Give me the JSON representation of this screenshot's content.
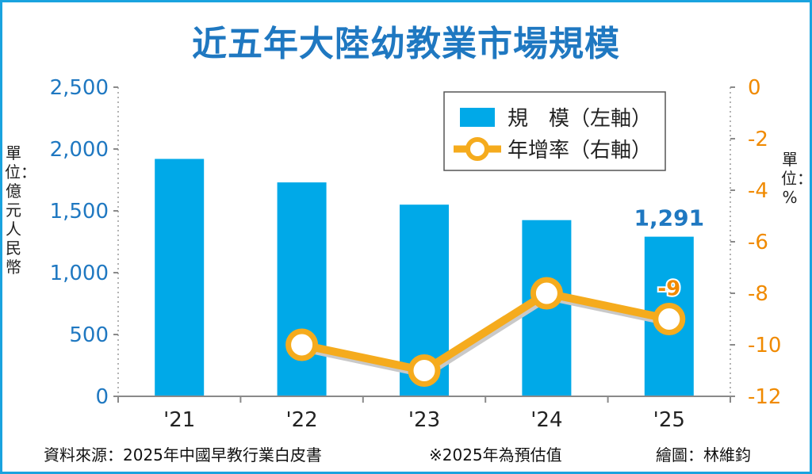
{
  "title": "近五年大陸幼教業市場規模",
  "unit_left": "單位：億元人民幣",
  "unit_right": "單位：%",
  "footer": {
    "source": "資料來源：2025年中國早教行業白皮書",
    "note": "※2025年為預估值",
    "credit": "繪圖：林維鈞"
  },
  "colors": {
    "bar": "#00a9e8",
    "line": "#f5ab1d",
    "left_axis_text": "#1f78c1",
    "right_axis_text": "#f08a00",
    "title": "#1f78c1"
  },
  "chart_data": {
    "type": "bar+line",
    "title": "近五年大陸幼教業市場規模",
    "categories": [
      "'21",
      "'22",
      "'23",
      "'24",
      "'25"
    ],
    "series": [
      {
        "name": "規　模（左軸）",
        "type": "bar",
        "axis": "left",
        "values": [
          1920,
          1730,
          1550,
          1425,
          1291
        ]
      },
      {
        "name": "年增率（右軸）",
        "type": "line",
        "axis": "right",
        "values": [
          null,
          -10,
          -11,
          -8,
          -9
        ]
      }
    ],
    "left_axis": {
      "ylim": [
        0,
        2500
      ],
      "ticks": [
        0,
        500,
        1000,
        1500,
        2000,
        2500
      ],
      "tick_labels": [
        "0",
        "500",
        "1,000",
        "1,500",
        "2,000",
        "2,500"
      ]
    },
    "right_axis": {
      "ylim": [
        -12,
        0
      ],
      "ticks": [
        0,
        -2,
        -4,
        -6,
        -8,
        -10,
        -12
      ],
      "tick_labels": [
        "0",
        "-2",
        "-4",
        "-6",
        "-8",
        "-10",
        "-12"
      ]
    },
    "annotations": [
      {
        "series": "bar",
        "index": 4,
        "text": "1,291"
      },
      {
        "series": "line",
        "index": 4,
        "text": "-9"
      }
    ],
    "legend": {
      "position": "top-right",
      "entries": [
        "規　模（左軸）",
        "年增率（右軸）"
      ]
    },
    "xlabel": "",
    "ylabel_left": "單位：億元人民幣",
    "ylabel_right": "單位：%"
  }
}
